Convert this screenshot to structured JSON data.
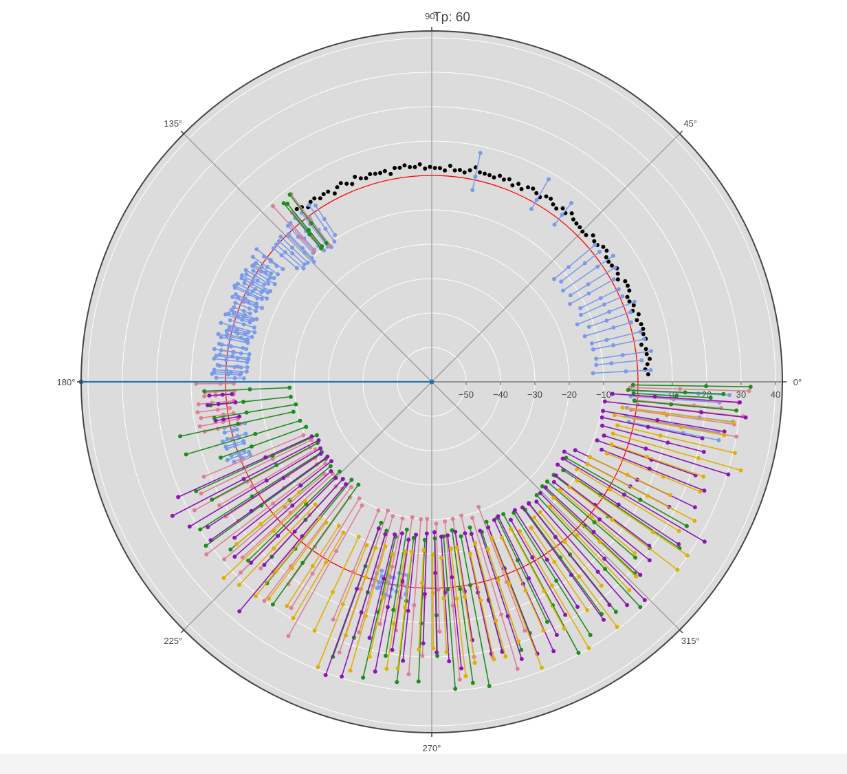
{
  "chart_data": {
    "type": "scatter",
    "subtype": "polar",
    "title": "Tp: 60",
    "angular_axis": {
      "direction": "counterclockwise",
      "rotation_deg": 0,
      "tick_labels": [
        "0°",
        "45°",
        "90°",
        "135°",
        "180°",
        "225°",
        "270°",
        "315°"
      ]
    },
    "radial_axis": {
      "range": [
        -60,
        42
      ],
      "tick_values": [
        -50,
        -40,
        -30,
        -20,
        -10,
        10,
        20,
        30,
        40
      ],
      "tick_labels": [
        "−50",
        "−40",
        "−30",
        "−20",
        "−10",
        "10",
        "20",
        "30",
        "40"
      ],
      "angle_deg": 0,
      "grid": true
    },
    "reference_circle": {
      "r": 0,
      "color": "#ff0000"
    },
    "colors": {
      "polar_bg": "#dcdcdc",
      "grid": "#ffffff",
      "axis_line": "#666666",
      "outer_ring": "#444444",
      "black_markers": "#000000",
      "reference": "#ff0000",
      "blue_line": "#1f77b4"
    },
    "series": [
      {
        "marker_color": "#000000",
        "mode": "markers",
        "angle_start": 2,
        "angle_end": 128,
        "count": 95,
        "r_base": 2,
        "r_amp": 2.2
      },
      {
        "line_color": "#7b9be8",
        "mode": "lines+markers",
        "segments": [
          {
            "angle_start": 3,
            "angle_end": 40,
            "count": 15,
            "r_inner": -13,
            "r_outer": 5
          },
          {
            "angle_start": 124,
            "angle_end": 140,
            "count": 14,
            "r_inner": -10,
            "r_outer": 3
          },
          {
            "angle_start": 143,
            "angle_end": 179,
            "count": 46,
            "r_inner": -5,
            "r_outer": 4
          },
          {
            "angle_start": 193,
            "angle_end": 202,
            "count": 9,
            "r_inner": -3,
            "r_outer": 4
          },
          {
            "angle_start": 254,
            "angle_end": 263,
            "count": 9,
            "r_inner": -3,
            "r_outer": 4
          },
          {
            "angle_start": 348,
            "angle_end": 358,
            "count": 5,
            "r_inner": -2,
            "r_outer": 34
          }
        ],
        "spikes": [
          {
            "angle": 78,
            "r_inner": -3,
            "r_outer": 8
          },
          {
            "angle": 60,
            "r_inner": -2,
            "r_outer": 8
          },
          {
            "angle": 52,
            "r_inner": -2,
            "r_outer": 6
          }
        ]
      },
      {
        "line_color": "#de8095",
        "mode": "lines+markers",
        "segments": [
          {
            "angle_start": 127,
            "angle_end": 132,
            "count": 3,
            "r_inner": -10,
            "r_outer": 9
          },
          {
            "angle_start": 181,
            "angle_end": 192,
            "count": 8,
            "r_inner": -2,
            "r_outer": 10
          },
          {
            "angle_start": 203,
            "angle_end": 240,
            "count": 16,
            "r_inner": -20,
            "r_outer": 25
          },
          {
            "angle_start": 247,
            "angle_end": 290,
            "count": 13,
            "r_inner": -20,
            "r_outer": 28
          },
          {
            "angle_start": 350,
            "angle_end": 358,
            "count": 6,
            "r_inner": -1,
            "r_outer": 34
          }
        ]
      },
      {
        "line_color": "#1e8c1e",
        "mode": "lines+markers",
        "segments": [
          {
            "angle_start": 127,
            "angle_end": 130,
            "count": 3,
            "r_inner": -10,
            "r_outer": 11
          },
          {
            "angle_start": 182,
            "angle_end": 200,
            "count": 6,
            "r_inner": -20,
            "r_outer": 15
          },
          {
            "angle_start": 205,
            "angle_end": 235,
            "count": 9,
            "r_inner": -22,
            "r_outer": 24
          },
          {
            "angle_start": 250,
            "angle_end": 330,
            "count": 24,
            "r_inner": -15,
            "r_outer": 30
          },
          {
            "angle_start": 355,
            "angle_end": 359,
            "count": 4,
            "r_inner": -2,
            "r_outer": 33
          }
        ]
      },
      {
        "line_color": "#8c14b4",
        "mode": "lines+markers",
        "segments": [
          {
            "angle_start": 183,
            "angle_end": 190,
            "count": 3,
            "r_inner": -2,
            "r_outer": 6
          },
          {
            "angle_start": 205,
            "angle_end": 230,
            "count": 10,
            "r_inner": -22,
            "r_outer": 28
          },
          {
            "angle_start": 250,
            "angle_end": 335,
            "count": 30,
            "r_inner": -15,
            "r_outer": 32
          },
          {
            "angle_start": 338,
            "angle_end": 356,
            "count": 8,
            "r_inner": -8,
            "r_outer": 34
          }
        ]
      },
      {
        "line_color": "#e0b000",
        "mode": "lines+markers",
        "segments": [
          {
            "angle_start": 220,
            "angle_end": 240,
            "count": 7,
            "r_inner": -10,
            "r_outer": 24
          },
          {
            "angle_start": 245,
            "angle_end": 335,
            "count": 30,
            "r_inner": -10,
            "r_outer": 30
          },
          {
            "angle_start": 338,
            "angle_end": 352,
            "count": 6,
            "r_inner": -5,
            "r_outer": 34
          }
        ]
      },
      {
        "line_color": "#1f77b4",
        "mode": "lines+markers",
        "points": [
          {
            "angle": 180,
            "r": -60
          },
          {
            "angle": 180,
            "r": 42
          }
        ]
      }
    ]
  }
}
